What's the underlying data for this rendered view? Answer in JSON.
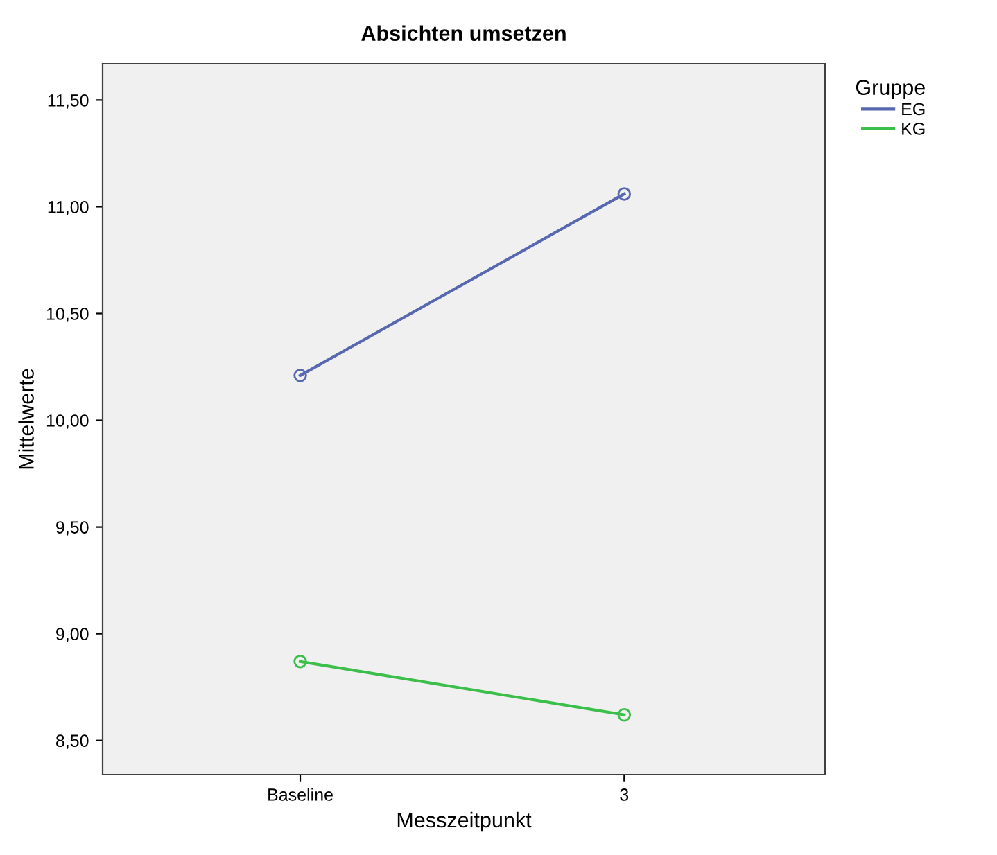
{
  "chart_data": {
    "type": "line",
    "title": "Absichten umsetzen",
    "xlabel": "Messzeitpunkt",
    "ylabel": "Mittelwerte",
    "legend_title": "Gruppe",
    "categories": [
      "Baseline",
      "3"
    ],
    "series": [
      {
        "name": "EG",
        "color": "#5767b0",
        "values": [
          10.21,
          11.06
        ]
      },
      {
        "name": "KG",
        "color": "#3cbf4a",
        "values": [
          8.87,
          8.62
        ]
      }
    ],
    "ylim": [
      8.34,
      11.67
    ],
    "yticks": [
      {
        "value": 8.5,
        "label": "8,50"
      },
      {
        "value": 9.0,
        "label": "9,00"
      },
      {
        "value": 9.5,
        "label": "9,50"
      },
      {
        "value": 10.0,
        "label": "10,00"
      },
      {
        "value": 10.5,
        "label": "10,50"
      },
      {
        "value": 11.0,
        "label": "11,00"
      },
      {
        "value": 11.5,
        "label": "11,50"
      }
    ],
    "grid": false,
    "legend": "top right",
    "marker": "circle",
    "line_style": "solid"
  }
}
